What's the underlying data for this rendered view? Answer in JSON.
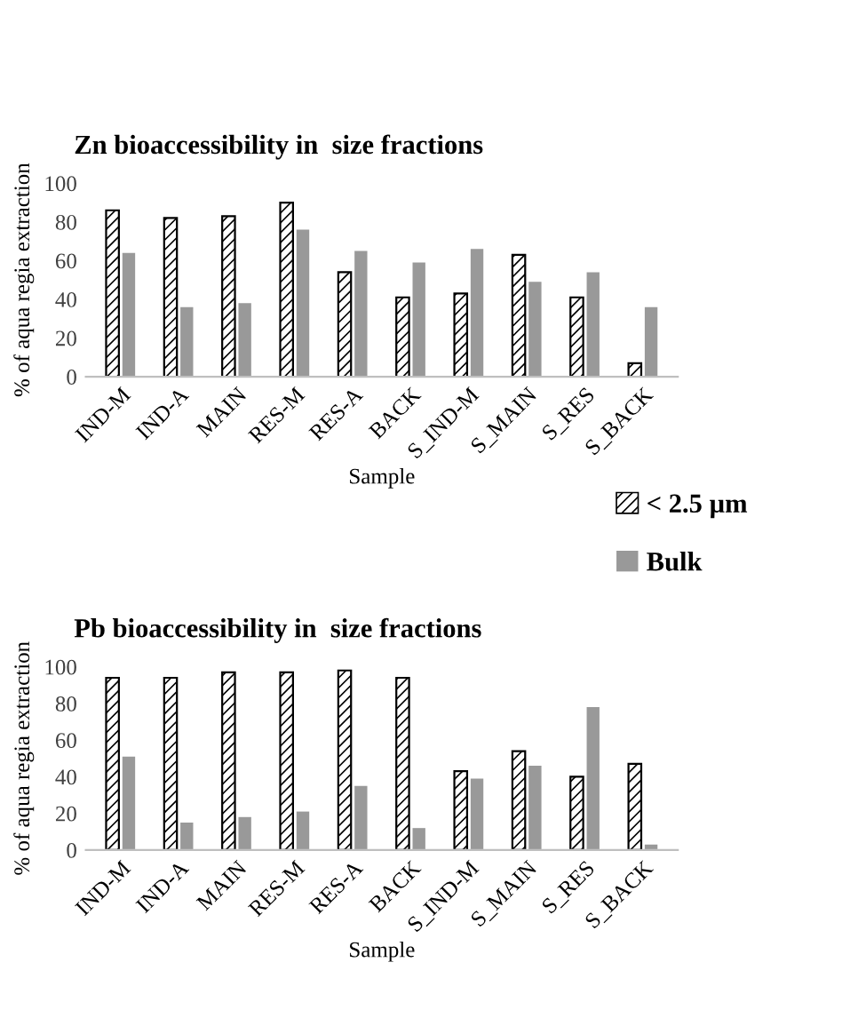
{
  "chart_data": [
    {
      "type": "bar",
      "title": "Zn bioaccessibility in  size fractions",
      "xlabel": "Sample",
      "ylabel": "% of aqua regia extraction",
      "categories": [
        "IND-M",
        "IND-A",
        "MAIN",
        "RES-M",
        "RES-A",
        "BACK",
        "S_IND-M",
        "S_MAIN",
        "S_RES",
        "S_BACK"
      ],
      "series": [
        {
          "name": "< 2.5 µm",
          "color": "#000000",
          "values": [
            86,
            82,
            83,
            90,
            54,
            41,
            43,
            63,
            41,
            7
          ]
        },
        {
          "name": "Bulk",
          "color": "#999999",
          "values": [
            64,
            36,
            38,
            76,
            65,
            59,
            66,
            49,
            54,
            36
          ]
        }
      ],
      "ylim": [
        0,
        100
      ],
      "yticks": [
        0,
        20,
        40,
        60,
        80,
        100
      ],
      "grid": false,
      "legend": "right"
    },
    {
      "type": "bar",
      "title": "Pb bioaccessibility in  size fractions",
      "xlabel": "Sample",
      "ylabel": "% of aqua regia extraction",
      "categories": [
        "IND-M",
        "IND-A",
        "MAIN",
        "RES-M",
        "RES-A",
        "BACK",
        "S_IND-M",
        "S_MAIN",
        "S_RES",
        "S_BACK"
      ],
      "series": [
        {
          "color": "#000000",
          "values": [
            94,
            94,
            97,
            97,
            98,
            94,
            43,
            54,
            40,
            47
          ]
        },
        {
          "color": "#999999",
          "values": [
            51,
            15,
            18,
            21,
            35,
            12,
            39,
            46,
            78,
            3
          ]
        }
      ],
      "ylim": [
        0,
        100
      ],
      "yticks": [
        0,
        20,
        40,
        60,
        80,
        100
      ],
      "grid": false
    }
  ]
}
